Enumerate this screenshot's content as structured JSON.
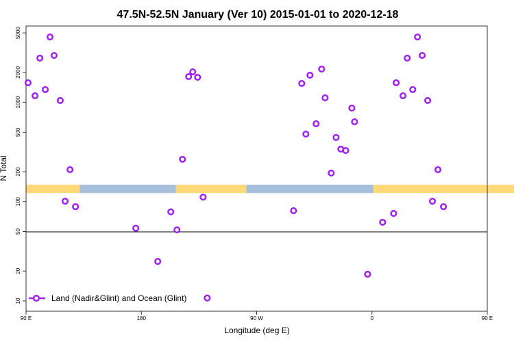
{
  "chart_data": {
    "type": "scatter",
    "title": "47.5N-52.5N January (Ver 10)   2015-01-01 to 2020-12-18",
    "xlabel": "Longitude (deg E)",
    "ylabel": "N Total",
    "xlim": [
      90,
      450
    ],
    "ylim_log": [
      8,
      6000
    ],
    "y_scale": "log",
    "x_ticks": [
      {
        "value": 90,
        "label": "90 E"
      },
      {
        "value": 180,
        "label": "180"
      },
      {
        "value": 270,
        "label": "90 W"
      },
      {
        "value": 360,
        "label": "0"
      },
      {
        "value": 450,
        "label": "90 E"
      },
      {
        "value": 540,
        "label": "180"
      }
    ],
    "y_ticks": [
      {
        "value": 10,
        "label": "10"
      },
      {
        "value": 20,
        "label": "20"
      },
      {
        "value": 50,
        "label": "50"
      },
      {
        "value": 100,
        "label": "100"
      },
      {
        "value": 200,
        "label": "200"
      },
      {
        "value": 500,
        "label": "500"
      },
      {
        "value": 1000,
        "label": "1000"
      },
      {
        "value": 2000,
        "label": "2000"
      },
      {
        "value": 5000,
        "label": "5000"
      }
    ],
    "reference_line": 50,
    "legend": {
      "label": "Land (Nadir&Glint) and Ocean (Glint)",
      "placement": "bottom-left"
    },
    "colors": {
      "marker": "#A020F0",
      "land": "#FFD878",
      "ocean": "#A8BFDC"
    },
    "surface_band": {
      "range": [
        122,
        148
      ],
      "segments": [
        {
          "type": "land",
          "from": 90,
          "to": 132
        },
        {
          "type": "ocean",
          "from": 132,
          "to": 207
        },
        {
          "type": "land",
          "from": 207,
          "to": 262
        },
        {
          "type": "ocean",
          "from": 262,
          "to": 361
        },
        {
          "type": "land",
          "from": 361,
          "to": 498
        },
        {
          "type": "ocean",
          "from": 498,
          "to": 540
        }
      ]
    },
    "series": [
      {
        "name": "Land (Nadir&Glint) and Ocean (Glint)",
        "x": [
          91.6,
          97.0,
          100.8,
          105.0,
          108.7,
          111.9,
          116.7,
          120.5,
          124.3,
          128.6,
          175.7,
          192.8,
          203.0,
          207.8,
          212.1,
          216.9,
          220.1,
          223.9,
          228.2,
          231.4,
          298.8,
          305.2,
          308.4,
          311.6,
          316.4,
          320.7,
          323.4,
          328.2,
          332.0,
          335.7,
          339.5,
          344.3,
          346.4,
          356.6,
          368.3,
          376.9,
          378.9,
          384.2,
          387.5,
          391.8,
          395.5,
          399.2,
          403.5,
          407.2,
          411.5,
          415.8
        ],
        "y": [
          1574,
          1164,
          2787,
          1343,
          4550,
          2965,
          1043,
          101,
          210,
          89,
          54,
          25,
          79,
          52,
          267,
          1815,
          2028,
          1787,
          111,
          10.7,
          81,
          1549,
          479,
          1875,
          608,
          2163,
          1109,
          194,
          443,
          338,
          327,
          875,
          637,
          18.6,
          62,
          76,
          1574,
          1164,
          2787,
          1343,
          4550,
          2965,
          1043,
          101,
          210,
          89
        ]
      }
    ]
  }
}
